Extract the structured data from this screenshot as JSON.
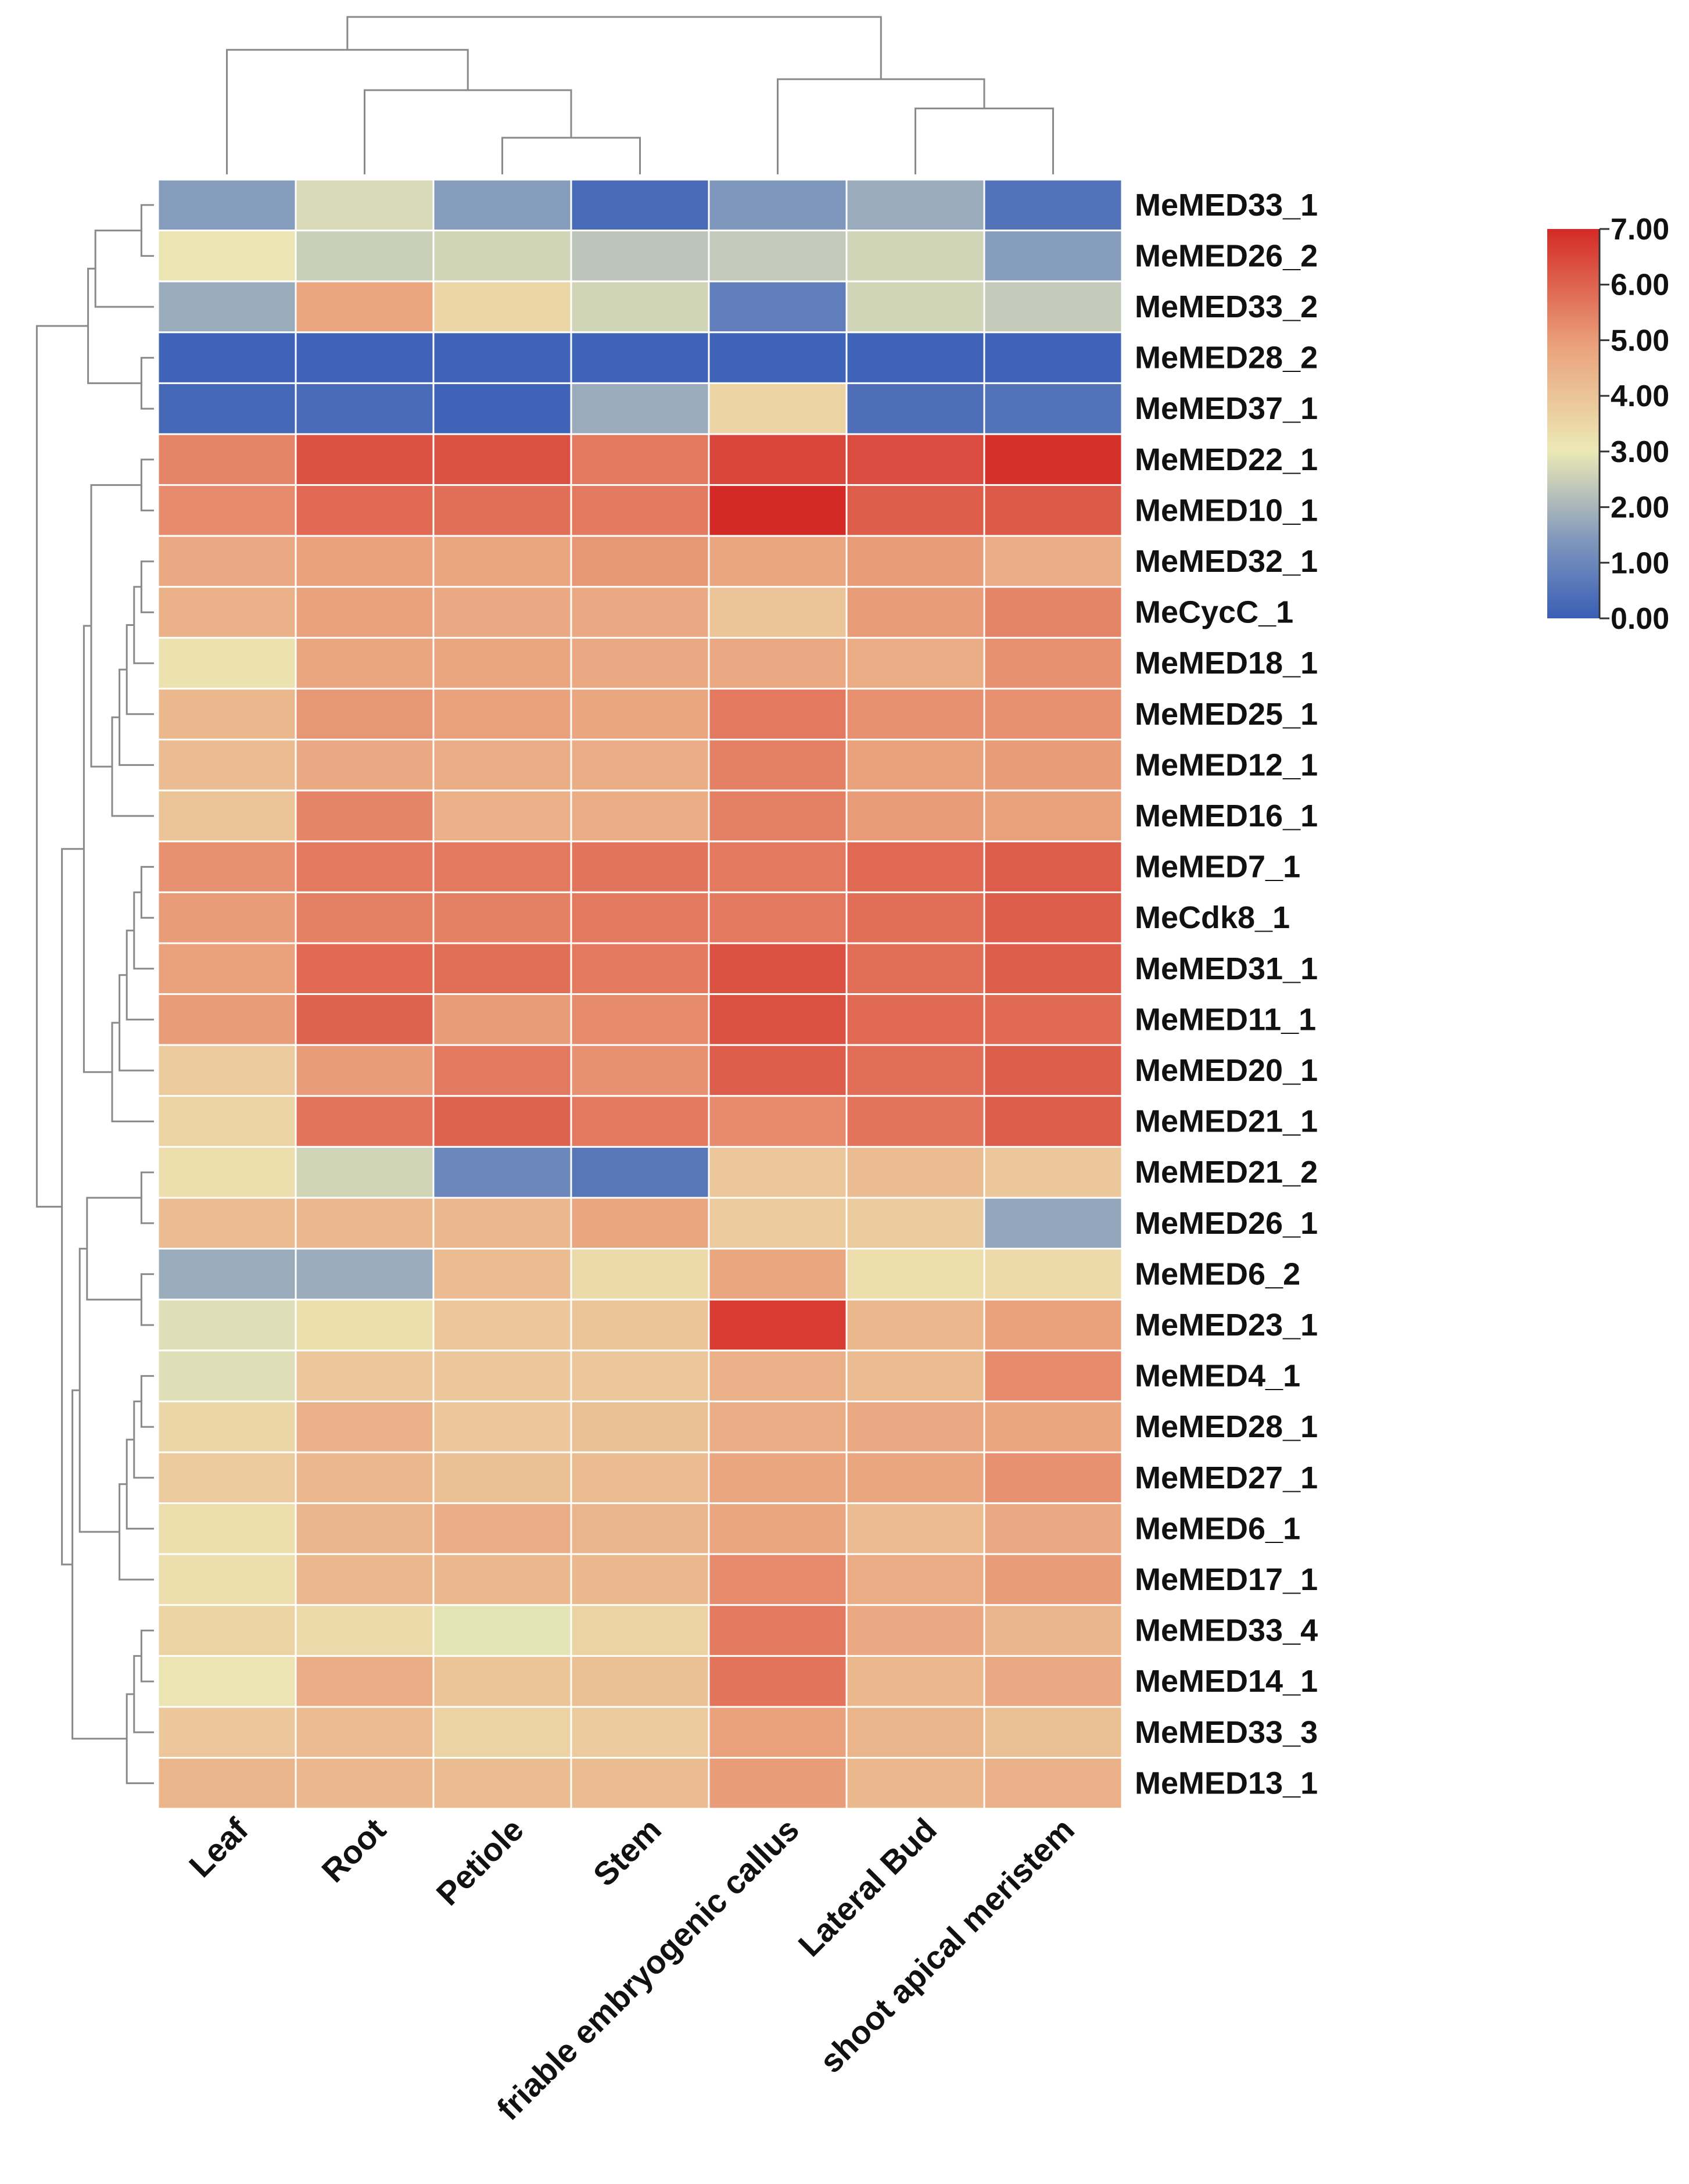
{
  "colors": {
    "low": "#3a5fb5",
    "mid": "#ece9b6",
    "high": "#d42a26",
    "tree": "#8a8a8a",
    "cell_border": "#ffffff"
  },
  "chart_data": {
    "type": "heatmap",
    "title": "",
    "xlabel": "",
    "ylabel": "",
    "columns": [
      "Leaf",
      "Root",
      "Petiole",
      "Stem",
      "friable embryogenic callus",
      "Lateral Bud",
      "shoot apical meristem"
    ],
    "rows": [
      "MeMED33_1",
      "MeMED26_2",
      "MeMED33_2",
      "MeMED28_2",
      "MeMED37_1",
      "MeMED22_1",
      "MeMED10_1",
      "MeMED32_1",
      "MeCycC_1",
      "MeMED18_1",
      "MeMED25_1",
      "MeMED12_1",
      "MeMED16_1",
      "MeMED7_1",
      "MeCdk8_1",
      "MeMED31_1",
      "MeMED11_1",
      "MeMED20_1",
      "MeMED21_1",
      "MeMED21_2",
      "MeMED26_1",
      "MeMED6_2",
      "MeMED23_1",
      "MeMED4_1",
      "MeMED28_1",
      "MeMED27_1",
      "MeMED6_1",
      "MeMED17_1",
      "MeMED33_4",
      "MeMED14_1",
      "MeMED33_3",
      "MeMED13_1"
    ],
    "values": [
      [
        1.5,
        2.7,
        1.5,
        0.3,
        1.4,
        1.8,
        0.5
      ],
      [
        3.1,
        2.5,
        2.6,
        2.3,
        2.4,
        2.6,
        1.5
      ],
      [
        1.8,
        4.8,
        3.5,
        2.6,
        0.8,
        2.6,
        2.4
      ],
      [
        0.1,
        0.1,
        0.1,
        0.1,
        0.1,
        0.1,
        0.1
      ],
      [
        0.2,
        0.3,
        0.1,
        1.8,
        3.6,
        0.4,
        0.5
      ],
      [
        5.4,
        6.3,
        6.3,
        5.6,
        6.5,
        6.4,
        6.9
      ],
      [
        5.3,
        5.9,
        5.8,
        5.6,
        7.0,
        6.1,
        6.2
      ],
      [
        4.7,
        4.9,
        4.8,
        5.1,
        4.8,
        5.0,
        4.6
      ],
      [
        4.5,
        4.9,
        4.7,
        4.7,
        4.0,
        5.0,
        5.4
      ],
      [
        3.2,
        4.8,
        4.8,
        4.7,
        4.7,
        4.6,
        5.2
      ],
      [
        4.3,
        5.1,
        4.9,
        4.8,
        5.6,
        5.2,
        5.2
      ],
      [
        4.2,
        4.7,
        4.6,
        4.6,
        5.5,
        4.9,
        5.0
      ],
      [
        4.0,
        5.4,
        4.5,
        4.6,
        5.5,
        5.0,
        4.9
      ],
      [
        5.2,
        5.6,
        5.6,
        5.7,
        5.6,
        5.9,
        6.1
      ],
      [
        5.0,
        5.5,
        5.5,
        5.6,
        5.6,
        5.8,
        6.1
      ],
      [
        4.9,
        5.9,
        5.8,
        5.6,
        6.3,
        5.8,
        6.1
      ],
      [
        5.0,
        6.0,
        5.0,
        5.3,
        6.3,
        5.9,
        5.9
      ],
      [
        3.8,
        5.0,
        5.6,
        5.2,
        6.1,
        5.8,
        6.1
      ],
      [
        3.6,
        5.7,
        6.0,
        5.6,
        5.3,
        5.7,
        6.1
      ],
      [
        3.3,
        2.6,
        1.0,
        0.6,
        3.9,
        4.2,
        3.9
      ],
      [
        4.2,
        4.3,
        4.3,
        4.8,
        3.8,
        3.8,
        1.7
      ],
      [
        1.8,
        1.8,
        4.2,
        3.4,
        4.8,
        3.3,
        3.4
      ],
      [
        2.8,
        3.3,
        3.9,
        4.0,
        6.7,
        4.3,
        4.9
      ],
      [
        2.8,
        3.9,
        3.9,
        3.9,
        4.5,
        4.2,
        5.3
      ],
      [
        3.5,
        4.5,
        3.9,
        4.1,
        4.6,
        4.7,
        4.8
      ],
      [
        3.8,
        4.3,
        4.1,
        4.2,
        4.8,
        4.8,
        5.2
      ],
      [
        3.3,
        4.4,
        4.6,
        4.4,
        4.8,
        4.2,
        4.7
      ],
      [
        3.3,
        4.3,
        4.3,
        4.3,
        5.3,
        4.6,
        5.0
      ],
      [
        3.6,
        3.4,
        2.9,
        3.6,
        5.6,
        4.7,
        4.4
      ],
      [
        3.1,
        4.6,
        4.0,
        4.1,
        5.7,
        4.3,
        4.7
      ],
      [
        3.9,
        4.2,
        3.6,
        3.8,
        4.9,
        4.4,
        4.1
      ],
      [
        4.4,
        4.3,
        4.2,
        4.2,
        5.0,
        4.3,
        4.5
      ]
    ],
    "colorbar": {
      "min": 0,
      "max": 7,
      "ticks": [
        "0.00",
        "1.00",
        "2.00",
        "3.00",
        "4.00",
        "5.00",
        "6.00",
        "7.00"
      ]
    },
    "col_dendrogram": {
      "merges": [
        [
          2,
          3
        ],
        [
          1,
          7
        ],
        [
          5,
          6
        ],
        [
          0,
          8
        ],
        [
          4,
          9
        ],
        [
          10,
          11
        ]
      ],
      "heights": [
        1,
        2.3,
        1.8,
        3.4,
        2.6,
        4.3
      ]
    },
    "row_dendrogram": {
      "merges": [
        [
          0,
          1
        ],
        [
          3,
          4
        ],
        [
          32,
          2
        ],
        [
          34,
          33
        ],
        [
          5,
          6
        ],
        [
          16,
          17
        ],
        [
          18,
          15
        ],
        [
          14,
          13
        ],
        [
          20,
          21
        ],
        [
          11,
          12
        ],
        [
          23,
          10
        ],
        [
          24,
          9
        ],
        [
          25,
          8
        ],
        [
          26,
          7
        ],
        [
          27,
          22
        ],
        [
          36,
          28
        ],
        [
          29,
          30
        ],
        [
          31,
          29
        ],
        [
          26,
          27
        ],
        [
          42,
          25
        ],
        [
          43,
          24
        ],
        [
          44,
          23
        ],
        [
          45,
          22
        ],
        [
          37,
          41
        ],
        [
          19,
          20
        ],
        [
          46,
          21
        ],
        [
          49,
          50
        ],
        [
          47,
          48
        ],
        [
          52,
          51
        ],
        [
          53,
          35
        ],
        [
          54,
          36
        ],
        [
          55,
          38
        ]
      ],
      "notes": "structural hierarchy"
    }
  }
}
